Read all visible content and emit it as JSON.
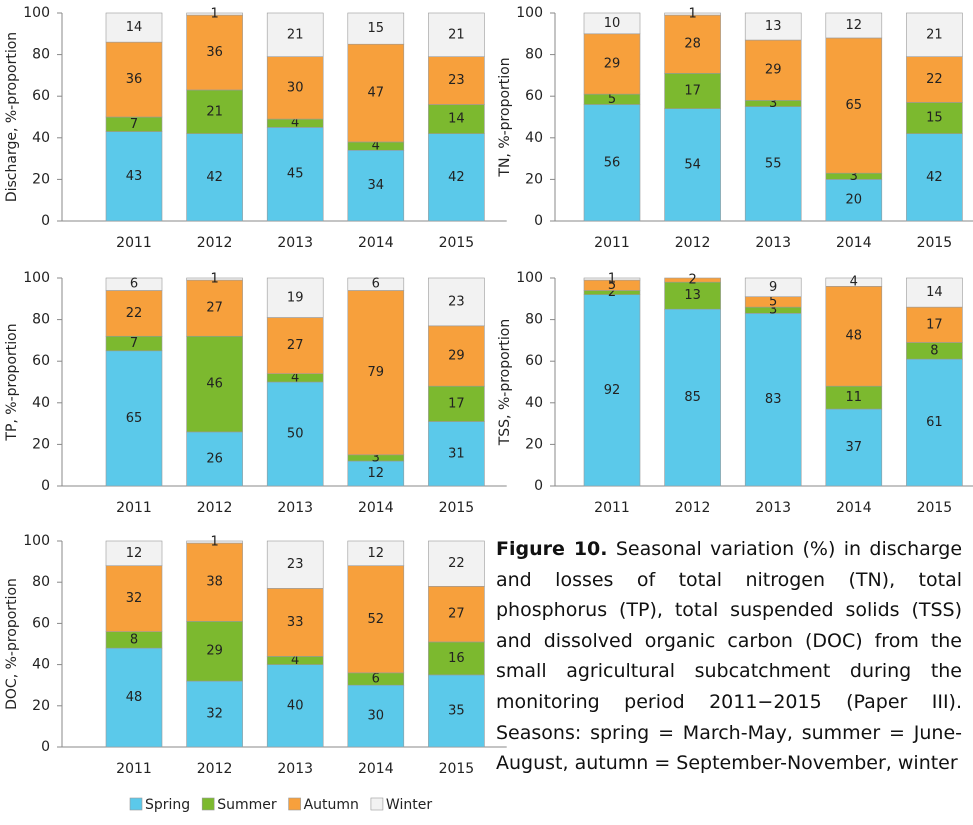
{
  "chart_data": [
    {
      "type": "bar",
      "stacked": true,
      "ylabel": "Discharge, %-proportion",
      "categories": [
        "2011",
        "2012",
        "2013",
        "2014",
        "2015"
      ],
      "ylim": [
        0,
        100
      ],
      "yticks": [
        0,
        20,
        40,
        60,
        80,
        100
      ],
      "series": [
        {
          "color": "#5bc9ea",
          "values": [
            43,
            42,
            45,
            34,
            42
          ]
        },
        {
          "color": "#7cb92f",
          "values": [
            7,
            21,
            4,
            4,
            14
          ]
        },
        {
          "color": "#f7a03c",
          "values": [
            36,
            36,
            30,
            47,
            23
          ]
        },
        {
          "color": "#f2f2f2",
          "values": [
            14,
            1,
            21,
            15,
            21
          ]
        }
      ]
    },
    {
      "type": "bar",
      "stacked": true,
      "ylabel": "TN, %-proportion",
      "categories": [
        "2011",
        "2012",
        "2013",
        "2014",
        "2015"
      ],
      "ylim": [
        0,
        100
      ],
      "yticks": [
        0,
        20,
        40,
        60,
        80,
        100
      ],
      "series": [
        {
          "color": "#5bc9ea",
          "values": [
            56,
            54,
            55,
            20,
            42
          ]
        },
        {
          "color": "#7cb92f",
          "values": [
            5,
            17,
            3,
            3,
            15
          ]
        },
        {
          "color": "#f7a03c",
          "values": [
            29,
            28,
            29,
            65,
            22
          ]
        },
        {
          "color": "#f2f2f2",
          "values": [
            10,
            1,
            13,
            12,
            21
          ]
        }
      ]
    },
    {
      "type": "bar",
      "stacked": true,
      "ylabel": "TP, %-proportion",
      "categories": [
        "2011",
        "2012",
        "2013",
        "2014",
        "2015"
      ],
      "ylim": [
        0,
        100
      ],
      "yticks": [
        0,
        20,
        40,
        60,
        80,
        100
      ],
      "series": [
        {
          "color": "#5bc9ea",
          "values": [
            65,
            26,
            50,
            12,
            31
          ]
        },
        {
          "color": "#7cb92f",
          "values": [
            7,
            46,
            4,
            3,
            17
          ]
        },
        {
          "color": "#f7a03c",
          "values": [
            22,
            27,
            27,
            79,
            29
          ]
        },
        {
          "color": "#f2f2f2",
          "values": [
            6,
            1,
            19,
            6,
            23
          ]
        }
      ]
    },
    {
      "type": "bar",
      "stacked": true,
      "ylabel": "TSS, %-proportion",
      "categories": [
        "2011",
        "2012",
        "2013",
        "2014",
        "2015"
      ],
      "ylim": [
        0,
        100
      ],
      "yticks": [
        0,
        20,
        40,
        60,
        80,
        100
      ],
      "series": [
        {
          "color": "#5bc9ea",
          "values": [
            92,
            85,
            83,
            37,
            61
          ]
        },
        {
          "color": "#7cb92f",
          "values": [
            2,
            13,
            3,
            11,
            8
          ]
        },
        {
          "color": "#f7a03c",
          "values": [
            5,
            2,
            5,
            48,
            17
          ]
        },
        {
          "color": "#f2f2f2",
          "values": [
            1,
            null,
            9,
            4,
            14
          ]
        }
      ]
    },
    {
      "type": "bar",
      "stacked": true,
      "ylabel": "DOC, %-proportion",
      "categories": [
        "2011",
        "2012",
        "2013",
        "2014",
        "2015"
      ],
      "ylim": [
        0,
        100
      ],
      "yticks": [
        0,
        20,
        40,
        60,
        80,
        100
      ],
      "series": [
        {
          "name": "Spring",
          "color": "#5bc9ea",
          "values": [
            48,
            32,
            40,
            30,
            35
          ]
        },
        {
          "name": "Summer",
          "color": "#7cb92f",
          "values": [
            8,
            29,
            4,
            6,
            16
          ]
        },
        {
          "name": "Autumn",
          "color": "#f7a03c",
          "values": [
            32,
            38,
            33,
            52,
            27
          ]
        },
        {
          "name": "Winter",
          "color": "#f2f2f2",
          "values": [
            12,
            1,
            23,
            12,
            22
          ]
        }
      ]
    }
  ],
  "caption": {
    "label": "Figure 10.",
    "text": "Seasonal variation (%) in discharge and losses of total nitrogen (TN), total phosphorus (TP), total suspended solids (TSS) and dissolved organic carbon (DOC) from the small agricultural subcatchment during the monitoring period 2011−2015 (Paper III). Seasons: spring = March-May, summer = June-August, autumn = September-November, winter"
  }
}
